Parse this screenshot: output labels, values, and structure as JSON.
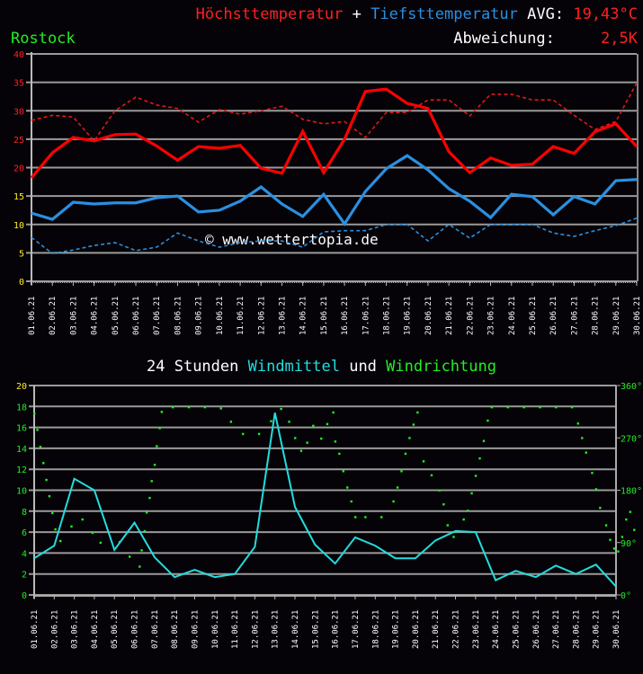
{
  "header": {
    "max_label": "Höchsttemperatur",
    "plus": "+",
    "min_label": "Tiefsttemperatur",
    "avg_label": "AVG:",
    "avg_value": "19,43°C",
    "location": "Rostock",
    "deviation_label": "Abweichung:",
    "deviation_value": "2,5K",
    "watermark": "© www.wettertopia.de"
  },
  "wind_title": {
    "prefix": "24 Stunden ",
    "wind_label": "Windmittel",
    "und": " und ",
    "dir_label": "Windrichtung"
  },
  "colors": {
    "max": "#ff0000",
    "max_normal": "#e01818",
    "min": "#2a8fe0",
    "min_normal": "#2a8fe0",
    "wind": "#22dddd",
    "direction": "#22ee22",
    "grid": "#9a9a9a",
    "yellow": "#ffee22",
    "location": "#22ee22"
  },
  "chart_data": [
    {
      "type": "line",
      "title": "Höchsttemperatur + Tiefsttemperatur AVG: 19,43°C",
      "xlabel": "",
      "ylabel": "°C",
      "ylim": [
        0,
        40
      ],
      "yticks": [
        0,
        5,
        10,
        15,
        20,
        25,
        30,
        35,
        40
      ],
      "grid": true,
      "categories": [
        "01.06.21",
        "02.06.21",
        "03.06.21",
        "04.06.21",
        "05.06.21",
        "06.06.21",
        "07.06.21",
        "08.06.21",
        "09.06.21",
        "10.06.21",
        "11.06.21",
        "12.06.21",
        "13.06.21",
        "14.06.21",
        "15.06.21",
        "16.06.21",
        "17.06.21",
        "18.06.21",
        "19.06.21",
        "20.06.21",
        "21.06.21",
        "22.06.21",
        "23.06.21",
        "24.06.21",
        "25.06.21",
        "26.06.21",
        "27.06.21",
        "28.06.21",
        "29.06.21",
        "30.06.21"
      ],
      "series": [
        {
          "name": "Höchsttemperatur",
          "style": "solid",
          "values": [
            18.2,
            22.6,
            25.3,
            24.7,
            25.8,
            25.9,
            23.8,
            21.3,
            23.7,
            23.4,
            23.9,
            19.9,
            19.0,
            26.4,
            19.1,
            25.0,
            33.4,
            33.8,
            31.3,
            30.4,
            22.8,
            19.1,
            21.7,
            20.4,
            20.6,
            23.7,
            22.5,
            26.3,
            27.7,
            23.7
          ]
        },
        {
          "name": "Höchsttemperatur (Vergleich)",
          "style": "dashed",
          "values": [
            28.3,
            29.2,
            28.9,
            24.7,
            30.0,
            32.4,
            31.0,
            30.4,
            28.0,
            30.2,
            29.4,
            30.0,
            30.8,
            28.5,
            27.7,
            28.1,
            25.3,
            29.7,
            29.7,
            31.9,
            31.9,
            29.1,
            32.9,
            32.9,
            31.9,
            31.9,
            29.2,
            26.7,
            28.1,
            34.9
          ]
        },
        {
          "name": "Tiefsttemperatur",
          "style": "solid",
          "values": [
            12.0,
            10.9,
            13.9,
            13.6,
            13.8,
            13.8,
            14.7,
            15.0,
            12.2,
            12.5,
            14.1,
            16.6,
            13.6,
            11.4,
            15.3,
            10.1,
            15.8,
            19.8,
            22.1,
            19.6,
            16.3,
            14.1,
            11.2,
            15.3,
            14.9,
            11.7,
            14.9,
            13.6,
            17.7,
            17.9
          ]
        },
        {
          "name": "Tiefsttemperatur (Vergleich)",
          "style": "dashed",
          "values": [
            7.7,
            4.9,
            5.5,
            6.3,
            6.8,
            5.4,
            6.0,
            8.5,
            7.1,
            6.0,
            6.8,
            7.1,
            7.1,
            6.0,
            8.7,
            8.9,
            8.9,
            10.0,
            10.0,
            7.1,
            10.0,
            7.6,
            10.0,
            10.0,
            10.0,
            8.5,
            7.9,
            8.9,
            9.8,
            11.1
          ]
        }
      ],
      "annotations": [
        "Rostock",
        "Abweichung: 2,5K",
        "© www.wettertopia.de"
      ]
    },
    {
      "type": "line",
      "title": "24 Stunden Windmittel und Windrichtung",
      "ylim": [
        0,
        20
      ],
      "yticks": [
        0,
        2,
        4,
        6,
        8,
        10,
        12,
        14,
        16,
        18,
        20
      ],
      "y2lim": [
        0,
        360
      ],
      "y2ticks": [
        "0°",
        "90°",
        "180°",
        "270°",
        "360°"
      ],
      "grid": true,
      "categories": [
        "01.06.21",
        "02.06.21",
        "03.06.21",
        "04.06.21",
        "05.06.21",
        "06.06.21",
        "07.06.21",
        "08.06.21",
        "09.06.21",
        "10.06.21",
        "11.06.21",
        "12.06.21",
        "13.06.21",
        "14.06.21",
        "15.06.21",
        "16.06.21",
        "17.06.21",
        "18.06.21",
        "19.06.21",
        "20.06.21",
        "21.06.21",
        "22.06.21",
        "23.06.21",
        "24.06.21",
        "25.06.21",
        "26.06.21",
        "27.06.21",
        "28.06.21",
        "29.06.21",
        "30.06.21"
      ],
      "series": [
        {
          "name": "Windmittel",
          "axis": "left",
          "values": [
            3.5,
            4.7,
            11.1,
            10.0,
            4.3,
            6.9,
            3.6,
            1.7,
            2.4,
            1.7,
            2.0,
            4.6,
            17.4,
            8.4,
            4.8,
            3.0,
            5.5,
            4.7,
            3.5,
            3.5,
            5.2,
            6.1,
            6.0,
            1.4,
            2.3,
            1.7,
            2.8,
            2.0,
            2.9,
            0.8
          ]
        },
        {
          "name": "Windrichtung",
          "axis": "right",
          "type": "scatter",
          "points": [
            [
              0.0,
              312
            ],
            [
              0.15,
              284
            ],
            [
              0.3,
              255
            ],
            [
              0.45,
              227
            ],
            [
              0.6,
              198
            ],
            [
              0.75,
              170
            ],
            [
              0.9,
              141
            ],
            [
              1.05,
              113
            ],
            [
              1.3,
              93
            ],
            [
              1.85,
              118
            ],
            [
              2.4,
              130
            ],
            [
              2.9,
              107
            ],
            [
              3.3,
              90
            ],
            [
              4.25,
              91
            ],
            [
              4.75,
              66
            ],
            [
              5.25,
              49
            ],
            [
              5.35,
              77
            ],
            [
              5.5,
              110
            ],
            [
              5.6,
              142
            ],
            [
              5.75,
              167
            ],
            [
              5.85,
              196
            ],
            [
              6.0,
              224
            ],
            [
              6.1,
              256
            ],
            [
              6.25,
              287
            ],
            [
              6.35,
              315
            ],
            [
              6.9,
              323
            ],
            [
              7.7,
              323
            ],
            [
              8.5,
              323
            ],
            [
              9.3,
              321
            ],
            [
              9.8,
              298
            ],
            [
              10.4,
              277
            ],
            [
              11.2,
              277
            ],
            [
              11.8,
              299
            ],
            [
              12.3,
              320
            ],
            [
              12.7,
              298
            ],
            [
              13.0,
              270
            ],
            [
              13.3,
              248
            ],
            [
              13.6,
              262
            ],
            [
              13.9,
              291
            ],
            [
              14.3,
              269
            ],
            [
              14.6,
              294
            ],
            [
              14.9,
              314
            ],
            [
              15.0,
              264
            ],
            [
              15.2,
              243
            ],
            [
              15.4,
              213
            ],
            [
              15.6,
              185
            ],
            [
              15.8,
              161
            ],
            [
              16.0,
              134
            ],
            [
              16.5,
              134
            ],
            [
              17.3,
              134
            ],
            [
              17.9,
              161
            ],
            [
              18.1,
              185
            ],
            [
              18.3,
              213
            ],
            [
              18.5,
              243
            ],
            [
              18.7,
              270
            ],
            [
              18.9,
              293
            ],
            [
              19.1,
              314
            ],
            [
              19.4,
              230
            ],
            [
              19.8,
              206
            ],
            [
              20.2,
              180
            ],
            [
              20.4,
              156
            ],
            [
              20.6,
              120
            ],
            [
              20.9,
              100
            ],
            [
              21.1,
              110
            ],
            [
              21.4,
              130
            ],
            [
              21.6,
              145
            ],
            [
              21.8,
              175
            ],
            [
              22.0,
              205
            ],
            [
              22.2,
              235
            ],
            [
              22.4,
              265
            ],
            [
              22.6,
              300
            ],
            [
              22.8,
              323
            ],
            [
              23.6,
              323
            ],
            [
              24.4,
              323
            ],
            [
              25.2,
              323
            ],
            [
              26.0,
              323
            ],
            [
              26.8,
              323
            ],
            [
              27.1,
              295
            ],
            [
              27.3,
              270
            ],
            [
              27.5,
              245
            ],
            [
              27.8,
              210
            ],
            [
              28.0,
              182
            ],
            [
              28.2,
              150
            ],
            [
              28.5,
              120
            ],
            [
              28.7,
              95
            ],
            [
              28.9,
              80
            ],
            [
              29.1,
              75
            ],
            [
              29.3,
              100
            ],
            [
              29.5,
              130
            ],
            [
              29.7,
              143
            ],
            [
              29.9,
              112
            ]
          ]
        }
      ]
    }
  ]
}
